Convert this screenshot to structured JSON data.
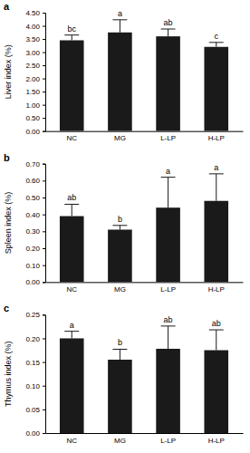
{
  "chart_data": [
    {
      "type": "bar",
      "title": "a",
      "ylabel": "Liver index (%)",
      "categories": [
        "NC",
        "MG",
        "L-LP",
        "H-LP"
      ],
      "values": [
        3.45,
        3.75,
        3.6,
        3.2
      ],
      "errors": [
        0.2,
        0.48,
        0.28,
        0.17
      ],
      "annotations": [
        "bc",
        "a",
        "ab",
        "c"
      ],
      "color": "#1a1a1a",
      "ylim": [
        0,
        4.5
      ],
      "yticks": [
        {
          "value": 0,
          "label": "0.00"
        },
        {
          "value": 0.5,
          "label": "0.50"
        },
        {
          "value": 1,
          "label": "1.00"
        },
        {
          "value": 1.5,
          "label": "1.50"
        },
        {
          "value": 2,
          "label": "2.00"
        },
        {
          "value": 2.5,
          "label": "2.50"
        },
        {
          "value": 3,
          "label": "3.00"
        },
        {
          "value": 3.5,
          "label": "3.50"
        },
        {
          "value": 4,
          "label": "4.00"
        },
        {
          "value": 4.5,
          "label": "4.50"
        }
      ]
    },
    {
      "type": "bar",
      "title": "b",
      "ylabel": "Spleen index (%)",
      "categories": [
        "NC",
        "MG",
        "L-LP",
        "H-LP"
      ],
      "values": [
        0.39,
        0.31,
        0.44,
        0.48
      ],
      "errors": [
        0.07,
        0.025,
        0.18,
        0.16
      ],
      "annotations": [
        "ab",
        "b",
        "a",
        "a"
      ],
      "color": "#1a1a1a",
      "ylim": [
        0,
        0.7
      ],
      "yticks": [
        {
          "value": 0,
          "label": "0.00"
        },
        {
          "value": 0.1,
          "label": "0.10"
        },
        {
          "value": 0.2,
          "label": "0.20"
        },
        {
          "value": 0.3,
          "label": "0.30"
        },
        {
          "value": 0.4,
          "label": "0.40"
        },
        {
          "value": 0.5,
          "label": "0.50"
        },
        {
          "value": 0.6,
          "label": "0.60"
        },
        {
          "value": 0.7,
          "label": "0.70"
        }
      ]
    },
    {
      "type": "bar",
      "title": "c",
      "ylabel": "Thymus index (%)",
      "categories": [
        "NC",
        "MG",
        "L-LP",
        "H-LP"
      ],
      "values": [
        0.2,
        0.155,
        0.178,
        0.175
      ],
      "errors": [
        0.015,
        0.022,
        0.048,
        0.043
      ],
      "annotations": [
        "a",
        "b",
        "ab",
        "ab"
      ],
      "color": "#1a1a1a",
      "ylim": [
        0,
        0.25
      ],
      "yticks": [
        {
          "value": 0,
          "label": "0.00"
        },
        {
          "value": 0.05,
          "label": "0.05"
        },
        {
          "value": 0.1,
          "label": "0.10"
        },
        {
          "value": 0.15,
          "label": "0.15"
        },
        {
          "value": 0.2,
          "label": "0.20"
        },
        {
          "value": 0.25,
          "label": "0.25"
        }
      ]
    }
  ]
}
